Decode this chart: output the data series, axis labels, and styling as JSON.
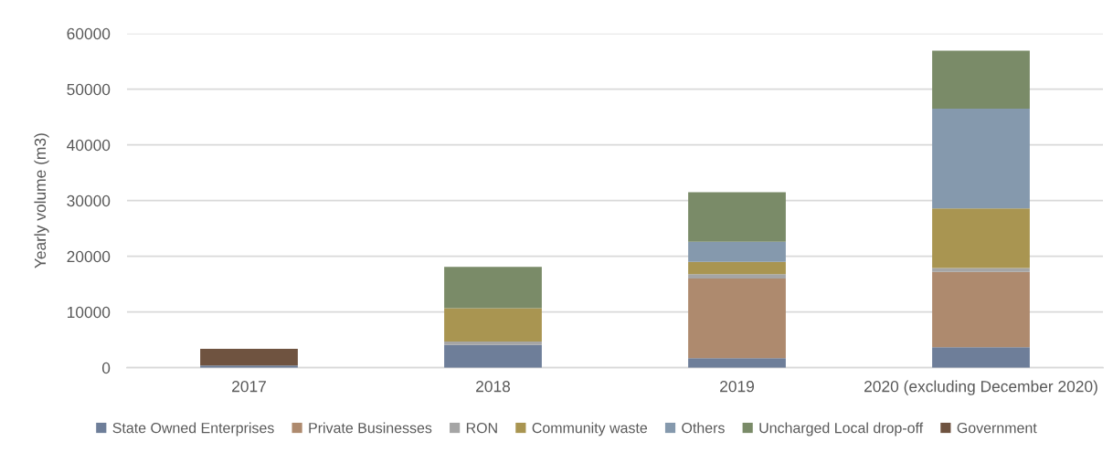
{
  "chart_data": {
    "type": "bar",
    "stacked": true,
    "ylabel": "Yearly volume (m3)",
    "categories": [
      "2017",
      "2018",
      "2019",
      "2020 (excluding December 2020)"
    ],
    "series": [
      {
        "name": "State Owned Enterprises",
        "color": "#6e7e99",
        "values": [
          400,
          4100,
          1700,
          3700
        ]
      },
      {
        "name": "Private Businesses",
        "color": "#ae8a6e",
        "values": [
          null,
          null,
          14300,
          13500
        ]
      },
      {
        "name": "RON",
        "color": "#a5a5a5",
        "values": [
          null,
          600,
          800,
          700
        ]
      },
      {
        "name": "Community waste",
        "color": "#a99551",
        "values": [
          null,
          6000,
          2200,
          10700
        ]
      },
      {
        "name": "Others",
        "color": "#8599ad",
        "values": [
          null,
          null,
          3600,
          17900
        ]
      },
      {
        "name": "Uncharged Local drop-off",
        "color": "#7a8b68",
        "values": [
          null,
          7400,
          8900,
          10400
        ]
      },
      {
        "name": "Government",
        "color": "#6f5340",
        "values": [
          3000,
          null,
          null,
          null
        ]
      }
    ],
    "ylim": [
      0,
      60000
    ],
    "yticks": [
      0,
      10000,
      20000,
      30000,
      40000,
      50000,
      60000
    ],
    "grid": "y",
    "legend": "bottom"
  }
}
